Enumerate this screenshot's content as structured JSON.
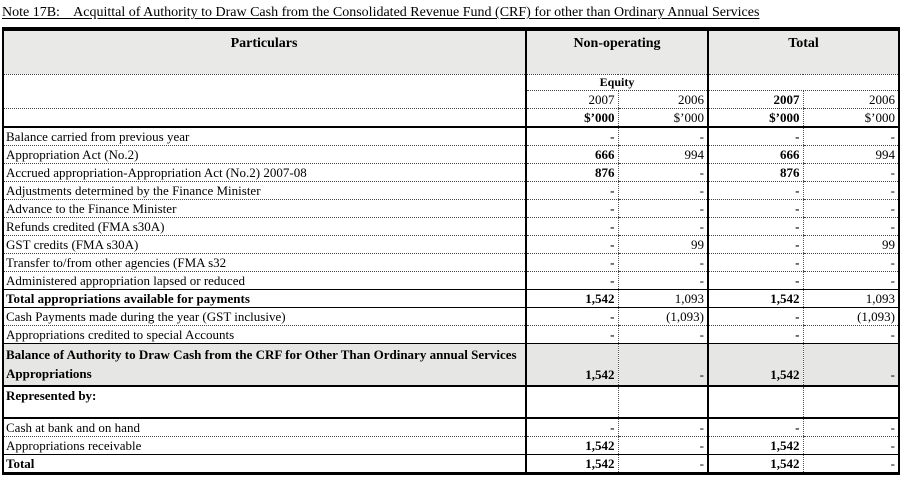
{
  "title": "Note 17B:    Acquittal of Authority to Draw Cash from the Consolidated Revenue Fund (CRF) for other than Ordinary Annual Services",
  "table": {
    "col_headers": {
      "particulars": "Particulars",
      "nonoperating": "Non-operating",
      "total": "Total"
    },
    "subgroup": "Equity",
    "years": [
      "2007",
      "2006",
      "2007",
      "2006"
    ],
    "units": [
      "$’000",
      "$’000",
      "$’000",
      "$’000"
    ],
    "rows": [
      {
        "label": "Balance carried from previous year",
        "values": [
          "-",
          "-",
          "-",
          "-"
        ],
        "type": "item"
      },
      {
        "label": "Appropriation Act (No.2)",
        "values": [
          "666",
          "994",
          "666",
          "994"
        ],
        "type": "item"
      },
      {
        "label": "Accrued appropriation-Appropriation Act (No.2) 2007-08",
        "values": [
          "876",
          "-",
          "876",
          "-"
        ],
        "type": "item"
      },
      {
        "label": "Adjustments determined by the Finance Minister",
        "values": [
          "-",
          "-",
          "-",
          "-"
        ],
        "type": "item"
      },
      {
        "label": "Advance to the Finance Minister",
        "values": [
          "-",
          "-",
          "-",
          "-"
        ],
        "type": "item"
      },
      {
        "label": "Refunds credited (FMA s30A)",
        "values": [
          "-",
          "-",
          "-",
          "-"
        ],
        "type": "item"
      },
      {
        "label": "GST credits (FMA s30A)",
        "values": [
          "-",
          "99",
          "-",
          "99"
        ],
        "type": "item"
      },
      {
        "label": "Transfer to/from other agencies (FMA s32",
        "values": [
          "-",
          "-",
          "-",
          "-"
        ],
        "type": "item"
      },
      {
        "label": "Administered appropriation lapsed or reduced",
        "values": [
          "-",
          "-",
          "-",
          "-"
        ],
        "type": "item"
      },
      {
        "label": "Total appropriations available for payments",
        "values": [
          "1,542",
          "1,093",
          "1,542",
          "1,093"
        ],
        "type": "subtotal"
      },
      {
        "label": "Cash Payments made during the year (GST inclusive)",
        "values": [
          "-",
          "(1,093)",
          "-",
          "(1,093)"
        ],
        "type": "item"
      },
      {
        "label": "Appropriations credited to special Accounts",
        "values": [
          "-",
          "-",
          "-",
          "-"
        ],
        "type": "item"
      },
      {
        "label": "Balance of Authority to Draw Cash from the CRF for Other Than Ordinary annual Services Appropriations",
        "values": [
          "1,542",
          "-",
          "1,542",
          "-"
        ],
        "type": "balance"
      },
      {
        "label": "Represented by:",
        "values": [
          "",
          "",
          "",
          ""
        ],
        "type": "heading"
      },
      {
        "label": "Cash at bank and on hand",
        "values": [
          "-",
          "-",
          "-",
          "-"
        ],
        "type": "item"
      },
      {
        "label": "Appropriations receivable",
        "values": [
          "1,542",
          "-",
          "1,542",
          "-"
        ],
        "type": "item"
      },
      {
        "label": "Total",
        "values": [
          "1,542",
          "-",
          "1,542",
          "-"
        ],
        "type": "total"
      }
    ]
  }
}
